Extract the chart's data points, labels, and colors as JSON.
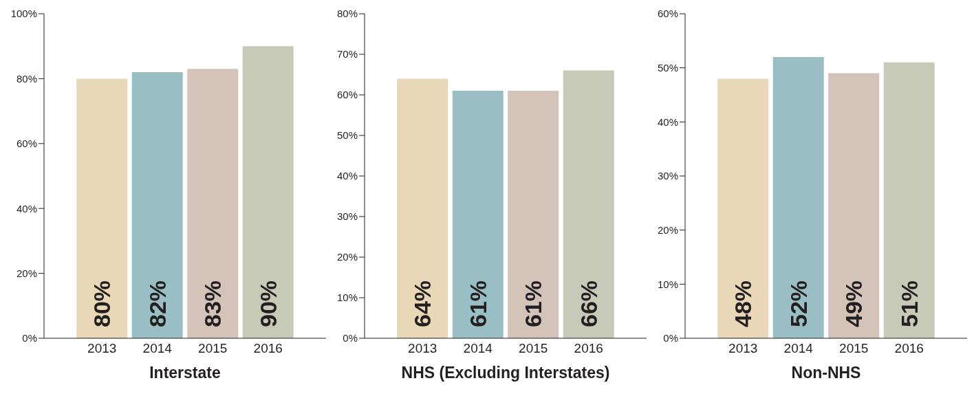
{
  "chart_data": [
    {
      "type": "bar",
      "xlabel": "Interstate",
      "categories": [
        "2013",
        "2014",
        "2015",
        "2016"
      ],
      "values": [
        80,
        82,
        83,
        90
      ],
      "colors": [
        "#e8d8b8",
        "#99bec3",
        "#d3c3b8",
        "#c8cab8"
      ],
      "value_labels": [
        "80%",
        "82%",
        "83%",
        "90%"
      ],
      "ylim": [
        0,
        100
      ],
      "yticks": [
        {
          "value": 0,
          "label": "0%"
        },
        {
          "value": 20,
          "label": "20%"
        },
        {
          "value": 40,
          "label": "40%"
        },
        {
          "value": 60,
          "label": "60%"
        },
        {
          "value": 80,
          "label": "80%"
        },
        {
          "value": 100,
          "label": "100%"
        }
      ],
      "grid": false,
      "legend": false
    },
    {
      "type": "bar",
      "xlabel": "NHS (Excluding Interstates)",
      "categories": [
        "2013",
        "2014",
        "2015",
        "2016"
      ],
      "values": [
        64,
        61,
        61,
        66
      ],
      "colors": [
        "#e8d8b8",
        "#99bec3",
        "#d3c3b8",
        "#c8cab8"
      ],
      "value_labels": [
        "64%",
        "61%",
        "61%",
        "66%"
      ],
      "ylim": [
        0,
        80
      ],
      "yticks": [
        {
          "value": 0,
          "label": "0%"
        },
        {
          "value": 10,
          "label": "10%"
        },
        {
          "value": 20,
          "label": "20%"
        },
        {
          "value": 30,
          "label": "30%"
        },
        {
          "value": 40,
          "label": "40%"
        },
        {
          "value": 50,
          "label": "50%"
        },
        {
          "value": 60,
          "label": "60%"
        },
        {
          "value": 70,
          "label": "70%"
        },
        {
          "value": 80,
          "label": "80%"
        }
      ],
      "grid": false,
      "legend": false
    },
    {
      "type": "bar",
      "xlabel": "Non-NHS",
      "categories": [
        "2013",
        "2014",
        "2015",
        "2016"
      ],
      "values": [
        48,
        52,
        49,
        51
      ],
      "colors": [
        "#e8d8b8",
        "#99bec3",
        "#d3c3b8",
        "#c8cab8"
      ],
      "value_labels": [
        "48%",
        "52%",
        "49%",
        "51%"
      ],
      "ylim": [
        0,
        60
      ],
      "yticks": [
        {
          "value": 0,
          "label": "0%"
        },
        {
          "value": 10,
          "label": "10%"
        },
        {
          "value": 20,
          "label": "20%"
        },
        {
          "value": 30,
          "label": "30%"
        },
        {
          "value": 40,
          "label": "40%"
        },
        {
          "value": 50,
          "label": "50%"
        },
        {
          "value": 60,
          "label": "60%"
        }
      ],
      "grid": false,
      "legend": false
    }
  ]
}
